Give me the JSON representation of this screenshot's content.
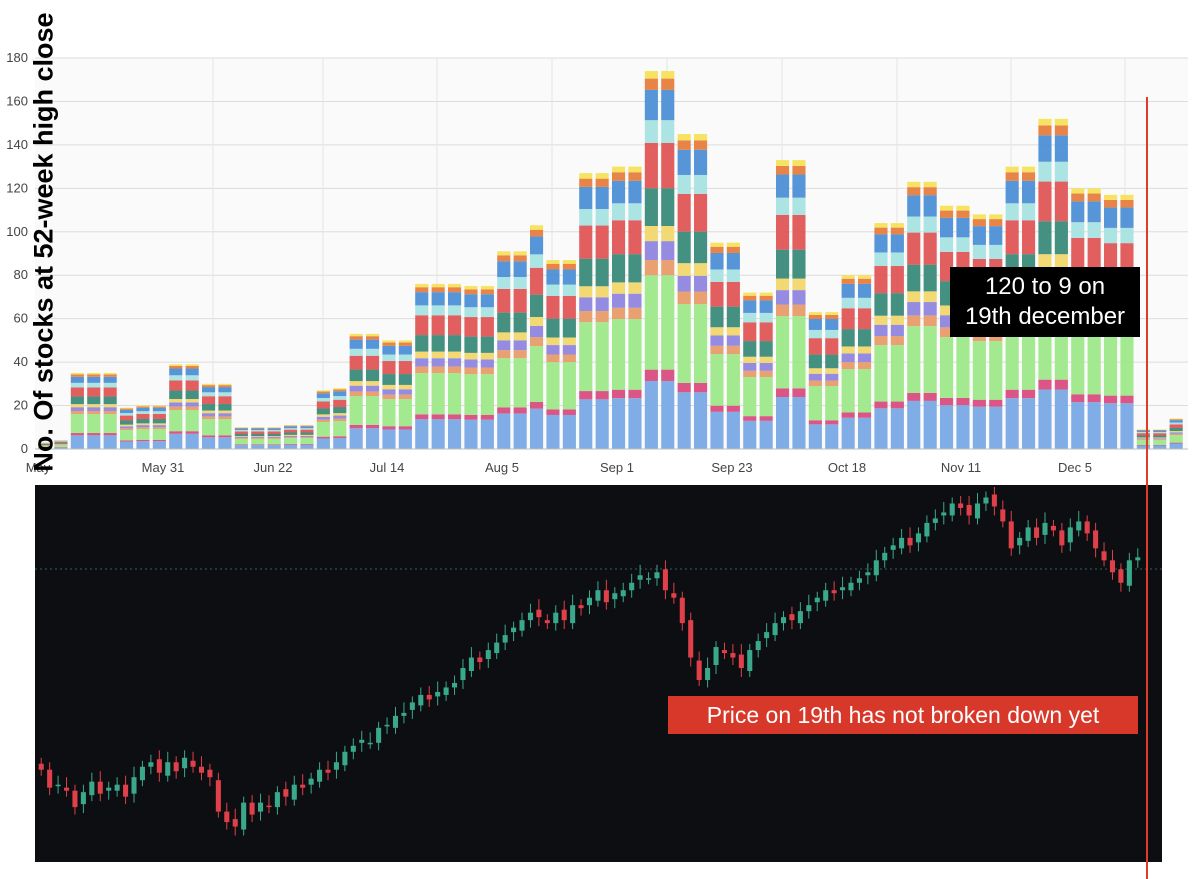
{
  "chart_data": [
    {
      "type": "bar",
      "stacked": true,
      "ylabel": "No. Of stocks at 52-week high close",
      "ylim": [
        0,
        180
      ],
      "yticks": [
        0,
        20,
        40,
        60,
        80,
        100,
        120,
        140,
        160,
        180
      ],
      "xtick_labels": [
        "May",
        "May 31",
        "Jun 22",
        "Jul 14",
        "Aug 5",
        "Sep 1",
        "Sep 23",
        "Oct 18",
        "Nov 11",
        "Dec 5"
      ],
      "grid": true,
      "totals": [
        3,
        4,
        35,
        35,
        35,
        19,
        20,
        20,
        39,
        39,
        30,
        30,
        10,
        10,
        10,
        11,
        11,
        27,
        28,
        53,
        53,
        50,
        50,
        76,
        76,
        76,
        75,
        75,
        91,
        91,
        103,
        87,
        87,
        127,
        127,
        130,
        130,
        174,
        174,
        145,
        145,
        95,
        95,
        72,
        72,
        133,
        133,
        63,
        63,
        80,
        80,
        104,
        104,
        123,
        123,
        112,
        112,
        108,
        108,
        130,
        130,
        152,
        152,
        120,
        120,
        117,
        117,
        9,
        9,
        14
      ],
      "segment_colors": [
        "#7aa9e6",
        "#d94c7f",
        "#9ee889",
        "#e89c6a",
        "#8f86e0",
        "#f2d76b",
        "#3a8a7a",
        "#e05656",
        "#a8e3e3",
        "#4d8fd6",
        "#e87d3e",
        "#f5e15a"
      ]
    },
    {
      "type": "candlestick",
      "up_color": "#3aa98b",
      "down_color": "#e0404a",
      "closes": [
        50,
        38,
        40,
        36,
        25,
        35,
        42,
        34,
        38,
        40,
        32,
        45,
        52,
        55,
        48,
        55,
        49,
        58,
        52,
        48,
        45,
        22,
        15,
        12,
        28,
        20,
        28,
        25,
        35,
        32,
        40,
        38,
        44,
        50,
        48,
        55,
        62,
        66,
        70,
        68,
        78,
        80,
        86,
        88,
        95,
        100,
        97,
        102,
        105,
        108,
        118,
        125,
        122,
        130,
        135,
        140,
        145,
        150,
        155,
        152,
        148,
        155,
        150,
        160,
        158,
        165,
        170,
        162,
        168,
        170,
        175,
        180,
        178,
        182,
        170,
        165,
        148,
        125,
        110,
        118,
        132,
        128,
        125,
        118,
        130,
        136,
        142,
        148,
        152,
        150,
        156,
        160,
        165,
        170,
        168,
        172,
        175,
        178,
        182,
        190,
        195,
        200,
        205,
        200,
        208,
        215,
        218,
        222,
        228,
        225,
        220,
        228,
        232,
        226,
        216,
        198,
        205,
        212,
        205,
        215,
        210,
        200,
        212,
        216,
        208,
        198,
        190,
        182,
        175,
        190,
        192
      ]
    }
  ],
  "annotations": {
    "black_box_line1": "120 to 9 on",
    "black_box_line2": "19th december",
    "red_box": "Price on 19th has not broken down yet"
  }
}
